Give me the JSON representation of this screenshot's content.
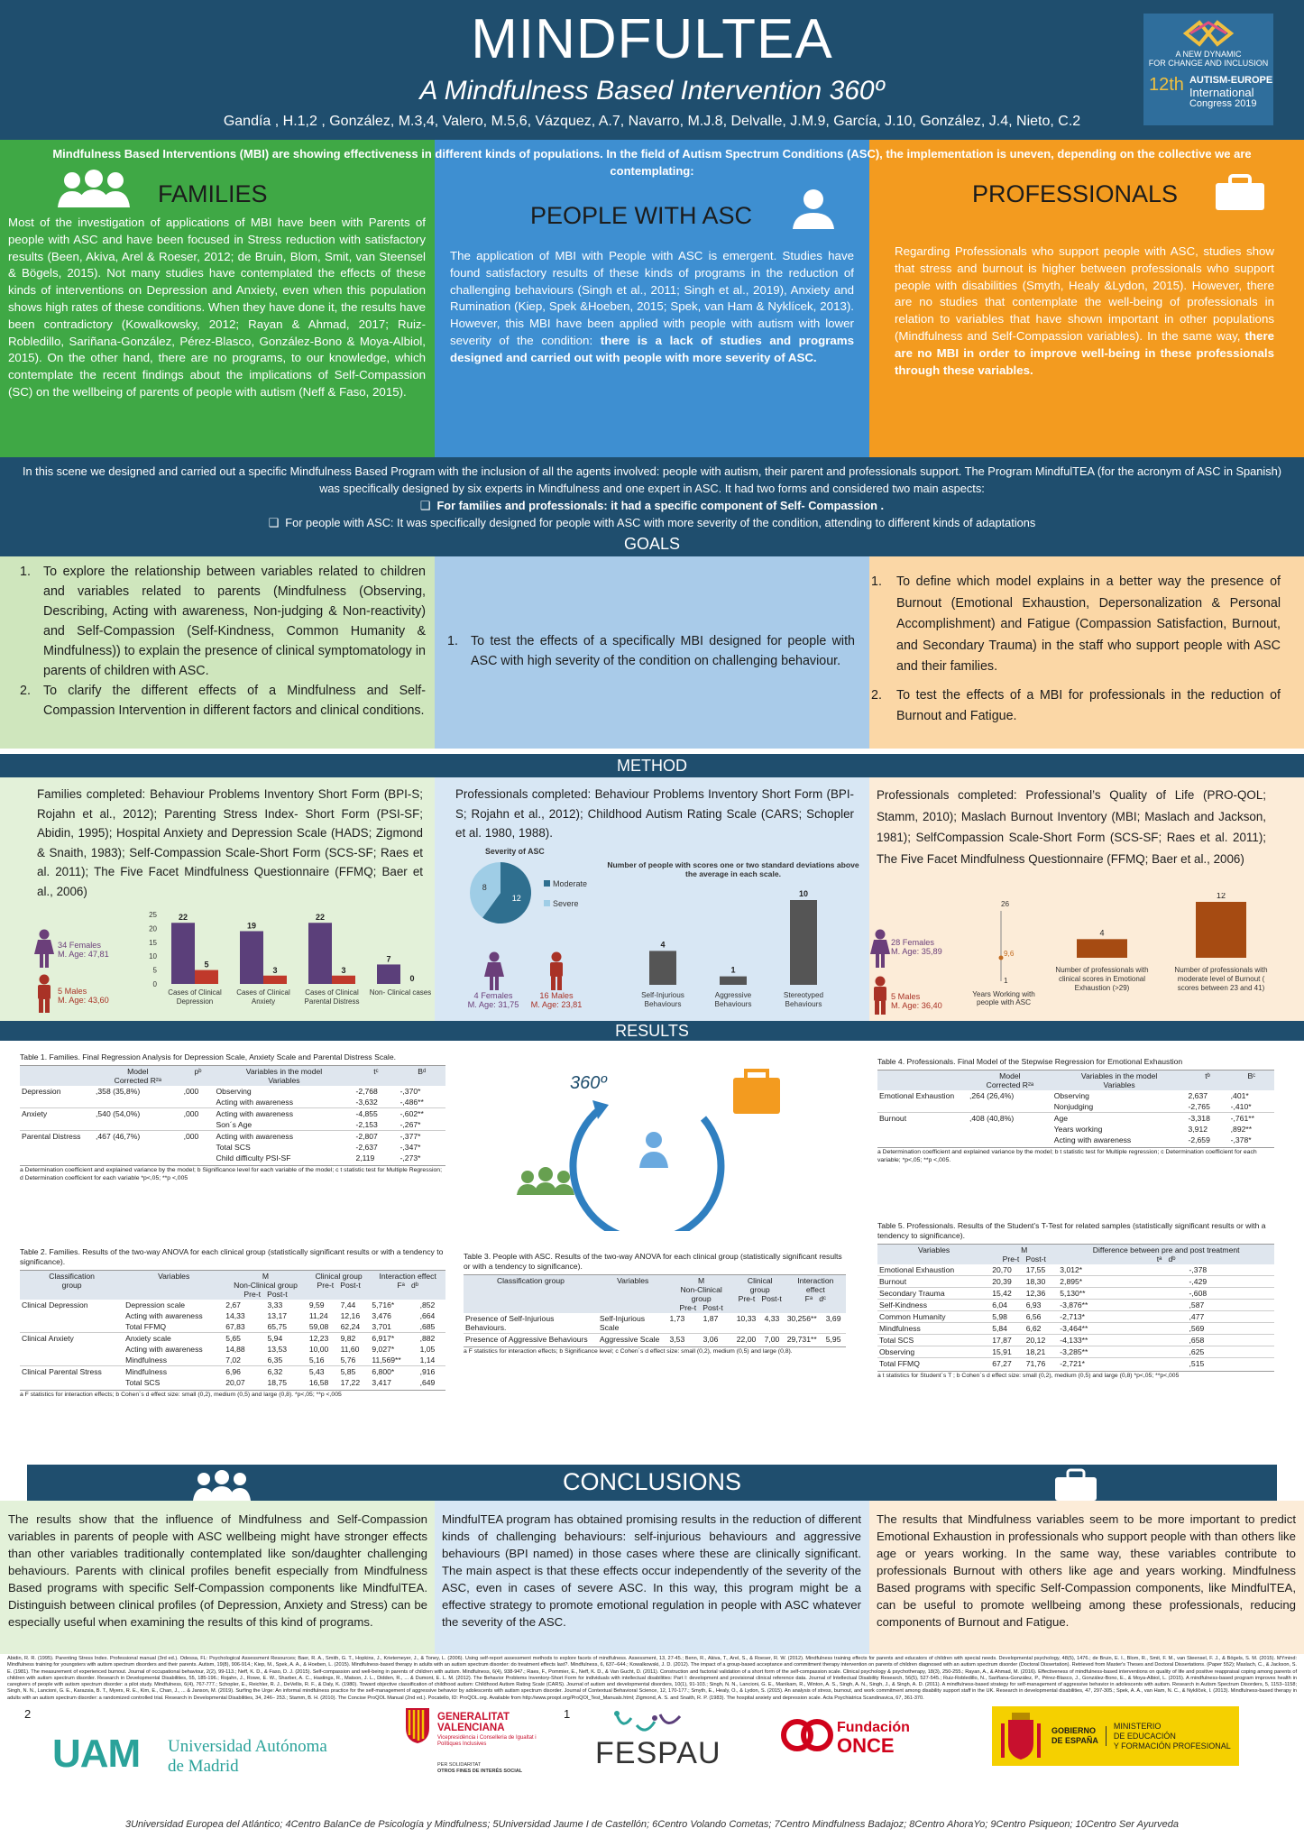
{
  "header": {
    "title": "MINDFULTEA",
    "subtitle": "A Mindfulness Based Intervention 360º",
    "authors": "Gandía , H.1,2 , González, M.3,4, Valero, M.5,6, Vázquez, A.7, Navarro, M.J.8, Delvalle, J.M.9, García, J.10, González, J.4, Nieto, C.2"
  },
  "congress": {
    "line1": "A NEW DYNAMIC",
    "line2": "FOR CHANGE AND INCLUSION",
    "num": "12th",
    "name1": "AUTISM-EUROPE",
    "name2": "International",
    "name3": "Congress 2019"
  },
  "intro": "Mindfulness Based Interventions (MBI) are showing effectiveness in different kinds of populations. In the field of Autism Spectrum Conditions (ASC), the implementation is uneven, depending on the collective we are contemplating:",
  "families": {
    "title": "FAMILIES",
    "text": "Most of the investigation of applications of MBI have been with Parents of people with ASC and have been focused in Stress reduction with satisfactory results (Been, Akiva, Arel & Roeser, 2012; de Bruin, Blom, Smit, van Steensel & Bögels, 2015). Not many studies have contemplated the effects of these kinds of interventions on Depression and Anxiety, even when this population shows high rates of these conditions. When they have done it, the results have been contradictory (Kowalkowsky, 2012; Rayan & Ahmad, 2017; Ruiz-Robledillo, Sariñana-González, Pérez-Blasco, González-Bono & Moya-Albiol, 2015). On the other hand, there are no programs, to our knowledge, which contemplate the recent findings about the implications of Self-Compassion (SC) on the wellbeing of parents of people with autism (Neff & Faso, 2015)."
  },
  "asc": {
    "title": "PEOPLE WITH ASC",
    "text": "The application of MBI with People with ASC is emergent. Studies have found satisfactory results of these kinds of programs in the reduction of challenging behaviours (Singh et al., 2011; Singh et al., 2019), Anxiety and Rumination (Kiep, Spek &Hoeben, 2015; Spek, van Ham & Nyklícek, 2013). However, this MBI have been applied with people with autism with lower severity of the condition:",
    "bold": "there is a lack of studies and programs designed and carried out with people with more severity of ASC."
  },
  "professionals": {
    "title": "PROFESSIONALS",
    "text": "Regarding Professionals who support people with ASC, studies show that stress and burnout is higher between professionals who support people with disabilities (Smyth, Healy &Lydon, 2015). However, there are no studies that contemplate the well-being of professionals in relation to variables that have shown important in other populations (Mindfulness and Self-Compassion variables). In the same way,",
    "bold": "there are no MBI in order to improve well-being in these professionals through these variables."
  },
  "scene": {
    "l1": "In this scene we designed and carried out a specific Mindfulness Based Program with the inclusion of all the agents involved: people with autism, their parent and professionals support. The Program MindfulTEA (for the acronym of ASC in Spanish) was specifically designed by six experts in Mindfulness and one expert in ASC. It had two forms and considered two main aspects:",
    "b1": "For families and professionals: it had a specific component of Self- Compassion .",
    "b2": "For people with ASC: It was specifically designed for people with ASC with more severity of the condition, attending to different kinds of adaptations"
  },
  "goals": {
    "title": "GOALS",
    "fam1": "To explore the relationship between variables related to children and variables related to parents (Mindfulness (Observing, Describing, Acting with awareness, Non-judging & Non-reactivity) and Self-Compassion (Self-Kindness, Common Humanity & Mindfulness)) to explain the presence of clinical symptomatology in parents of children with ASC.",
    "fam2": "To clarify the different effects of a Mindfulness and Self-Compassion Intervention in different factors and clinical conditions.",
    "asc1": "To test the effects of a specifically MBI designed for people with ASC with high severity of the condition on challenging behaviour.",
    "pro1": "To define which model explains in a better way the presence of Burnout (Emotional Exhaustion, Depersonalization & Personal Accomplishment) and Fatigue (Compassion Satisfaction, Burnout, and Secondary Trauma) in the staff who support people with ASC and their families.",
    "pro2": "To test the effects of a MBI for professionals in the reduction of Burnout and Fatigue."
  },
  "method": {
    "title": "METHOD",
    "fam": "Families completed: Behaviour Problems Inventory Short Form (BPI-S; Rojahn et al., 2012); Parenting Stress Index- Short Form (PSI-SF; Abidin, 1995); Hospital Anxiety and Depression Scale (HADS; Zigmond & Snaith, 1983); Self-Compassion Scale-Short Form (SCS-SF; Raes et al. 2011); The Five Facet Mindfulness Questionnaire (FFMQ; Baer et al., 2006)",
    "asc": "Professionals completed: Behaviour Problems Inventory Short Form (BPI-S; Rojahn et al., 2012); Childhood Autism Rating Scale (CARS; Schopler et al. 1980, 1988).",
    "pro": "Professionals completed: Professional’s Quality of Life (PRO-QOL; Stamm, 2010); Maslach Burnout Inventory (MBI; Maslach and Jackson, 1981); SelfCompassion Scale-Short Form (SCS-SF; Raes et al. 2011); The Five Facet Mindfulness Questionnaire (FFMQ; Baer et al., 2006)",
    "famFemales": "34 Females",
    "famFemAge": "M. Age: 47,81",
    "famMales": "5 Males",
    "famMaleAge": "M. Age: 43,60",
    "ascFemales": "4 Females",
    "ascFemAge": "M. Age: 31,75",
    "ascMales": "16 Males",
    "ascMaleAge": "M. Age: 23,81",
    "proFemales": "28 Females",
    "proFemAge": "M. Age: 35,89",
    "proMales": "5 Males",
    "proMaleAge": "M. Age: 36,40",
    "pieTitle": "Severity of ASC",
    "pieModerate": "Moderate",
    "pieSevere": "Severe",
    "ascBarTitle": "Number of people with scores one or two standard deviations above the average in each scale.",
    "proYears": "Years Working with people with ASC",
    "proYrTop": "26",
    "proYrMid": "9,6",
    "proYrBot": "1"
  },
  "chart_data": [
    {
      "type": "bar",
      "title": "",
      "categories": [
        "Cases of Clinical Depression",
        "Cases of Clinical Anxiety",
        "Cases of Clinical Parental Distress",
        "Non- Clinical cases"
      ],
      "series": [
        {
          "values": [
            22,
            19,
            22,
            7
          ]
        },
        {
          "values": [
            5,
            3,
            3,
            0
          ]
        }
      ],
      "ylim": [
        0,
        25
      ],
      "yticks": [
        "25",
        "20",
        "15",
        "10",
        "5",
        "0"
      ]
    },
    {
      "type": "pie",
      "title": "Severity of ASC",
      "categories": [
        "Moderate",
        "Severe"
      ],
      "values": [
        12,
        8
      ]
    },
    {
      "type": "bar",
      "title": "Number of people with scores one or two standard deviations above the average in each scale.",
      "categories": [
        "Self-Injurious Behaviours",
        "Aggressive Behaviours",
        "Stereotyped Behaviours"
      ],
      "values": [
        4,
        1,
        10
      ]
    },
    {
      "type": "bar",
      "title": "",
      "categories": [
        "Number of professionals with clinical scores in Emotional Exhaustion (>29)",
        "Number of professionals with moderate level of Burnout ( scores between 23 and 41)"
      ],
      "values": [
        4,
        12
      ]
    }
  ],
  "results": {
    "title": "RESULTS",
    "label360": "360º",
    "t1title": "Table 1. Families. Final Regression Analysis for Depression Scale, Anxiety Scale and Parental Distress Scale.",
    "t1note": "a Determination coefficient and explained variance by the model; b Significance level for each variable of the model; c t statistic test for Multiple Regression; d Determination coefficient for each variable *p<,05; **p <,005",
    "t1rows": [
      [
        "Depression",
        ",358 (35,8%)",
        ",000",
        "Observing",
        "-2,768",
        "-,370*"
      ],
      [
        "",
        "",
        "",
        "Acting with awareness",
        "-3,632",
        "-,486**"
      ],
      [
        "Anxiety",
        ",540 (54,0%)",
        ",000",
        "Acting with awareness",
        "-4,855",
        "-,602**"
      ],
      [
        "",
        "",
        "",
        "Son´s Age",
        "-2,153",
        "-,267*"
      ],
      [
        "Parental Distress",
        ",467 (46,7%)",
        ",000",
        "Acting with awareness",
        "-2,807",
        "-,377*"
      ],
      [
        "",
        "",
        "",
        "Total SCS",
        "-2,637",
        "-,347*"
      ],
      [
        "",
        "",
        "",
        "Child difficulty PSI-SF",
        "2,119",
        "-,273*"
      ]
    ],
    "t2title": "Table 2. Families. Results of the two-way ANOVA for each clinical group (statistically significant results or with a tendency to significance).",
    "t2note": "a F statistics for interaction effects; b Cohen´s d effect size: small (0,2), medium (0,5) and large (0,8). *p<,05; **p <,005",
    "t2rows": [
      [
        "Clinical Depression",
        "Depression scale",
        "2,67",
        "3,33",
        "9,59",
        "7,44",
        "5,716*",
        ",852"
      ],
      [
        "",
        "Acting with awareness",
        "14,33",
        "13,17",
        "11,24",
        "12,16",
        "3,476",
        ",664"
      ],
      [
        "",
        "Total FFMQ",
        "67,83",
        "65,75",
        "59,08",
        "62,24",
        "3,701",
        ",685"
      ],
      [
        "Clinical Anxiety",
        "Anxiety scale",
        "5,65",
        "5,94",
        "12,23",
        "9,82",
        "6,917*",
        ",882"
      ],
      [
        "",
        "Acting with awareness",
        "14,88",
        "13,53",
        "10,00",
        "11,60",
        "9,027*",
        "1,05"
      ],
      [
        "",
        "Mindfulness",
        "7,02",
        "6,35",
        "5,16",
        "5,76",
        "11,569**",
        "1,14"
      ],
      [
        "Clinical Parental Stress",
        "Mindfulness",
        "6,96",
        "6,32",
        "5,43",
        "5,85",
        "6,800*",
        ",916"
      ],
      [
        "",
        "Total SCS",
        "20,07",
        "18,75",
        "16,58",
        "17,22",
        "3,417",
        ",649"
      ]
    ],
    "t3title": "Table 3. People with ASC. Results of the two-way ANOVA for each clinical group (statistically significant results or with a tendency to significance).",
    "t3note": "a F statistics for interaction effects; b Significance level; c Cohen´s d effect size: small (0,2), medium (0,5) and large (0,8).",
    "t3rows": [
      [
        "Presence of Self-Injurious Behaviours.",
        "Self-Injurious Scale",
        "1,73",
        "1,87",
        "10,33",
        "4,33",
        "30,256**",
        "3,69"
      ],
      [
        "Presence of Aggressive Behaviours",
        "Aggressive Scale",
        "3,53",
        "3,06",
        "22,00",
        "7,00",
        "29,731**",
        "5,95"
      ]
    ],
    "t4title": "Table 4. Professionals. Final Model of the Stepwise Regression for Emotional Exhaustion",
    "t4note": "a Determination coefficient and explained variance by the model; b t statistic test for Multiple regression; c Determination coefficient for each variable; *p<,05; **p <,005.",
    "t4rows": [
      [
        "Emotional Exhaustion",
        ",264 (26,4%)",
        "Observing",
        "2,637",
        ",401*"
      ],
      [
        "",
        "",
        "Nonjudging",
        "-2,765",
        "-,410*"
      ],
      [
        "Burnout",
        ",408 (40,8%)",
        "Age",
        "-3,318",
        "-,761**"
      ],
      [
        "",
        "",
        "Years working",
        "3,912",
        ",892**"
      ],
      [
        "",
        "",
        "Acting with awareness",
        "-2,659",
        "-,378*"
      ]
    ],
    "t5title": "Table 5. Professionals. Results of the Student’s T-Test for related samples (statistically significant results or with a tendency to significance).",
    "t5note": "a t statistics for Student´s T ; b Cohen´s d effect size: small (0,2), medium (0,5) and large (0,8) *p<,05; **p<,005",
    "t5rows": [
      [
        "Emotional Exhaustion",
        "20,70",
        "17,55",
        "3,012*",
        "-,378"
      ],
      [
        "Burnout",
        "20,39",
        "18,30",
        "2,895*",
        "-,429"
      ],
      [
        "Secondary Trauma",
        "15,42",
        "12,36",
        "5,130**",
        "-,608"
      ],
      [
        "Self-Kindness",
        "6,04",
        "6,93",
        "-3,876**",
        ",587"
      ],
      [
        "Common Humanity",
        "5,98",
        "6,56",
        "-2,713*",
        ",477"
      ],
      [
        "Mindfulness",
        "5,84",
        "6,62",
        "-3,464**",
        ",569"
      ],
      [
        "Total SCS",
        "17,87",
        "20,12",
        "-4,133**",
        ",658"
      ],
      [
        "Observing",
        "15,91",
        "18,21",
        "-3,285**",
        ",625"
      ],
      [
        "Total FFMQ",
        "67,27",
        "71,76",
        "-2,721*",
        ",515"
      ]
    ]
  },
  "conclusions": {
    "title": "CONCLUSIONS",
    "fam": "The results show that the influence of Mindfulness and Self-Compassion variables in parents of people with ASC wellbeing might have stronger effects than other variables traditionally contemplated like son/daughter challenging behaviours. Parents with clinical profiles benefit especially from Mindfulness Based programs with specific Self-Compassion components like MindfulTEA. Distinguish between clinical profiles (of Depression, Anxiety and Stress) can be especially useful when examining the results of this kind of programs.",
    "asc": "MindfulTEA program has obtained promising results in the reduction of different kinds of challenging behaviours: self-injurious behaviours and aggressive behaviours (BPI named) in those cases where these are clinically significant. The main aspect is that these effects occur independently of the severity of the ASC, even in cases of severe ASC. In this way, this program might be a effective strategy to promote emotional regulation in people with ASC whatever the severity of the ASC.",
    "pro": "The results that Mindfulness variables seem to be more important to predict Emotional Exhaustion in professionals who support people with than others like age or years working. In the same way, these variables contribute to professionals Burnout with others like age and years working. Mindfulness Based programs with specific Self-Compassion components, like MindfulTEA, can be useful to promote wellbeing among these professionals, reducing components of Burnout and Fatigue."
  },
  "references": "Abidin, R. R. (1995). Parenting Stress Index. Professional manual (3rd ed.). Odessa, FL: Psychological Assessment Resources; Baer, R. A., Smith, G. T., Hopkins, J., Krietemeyer, J., & Toney, L. (2006). Using self-report assessment methods to explore facets of mindfulness. Assessment, 13, 27-45.; Benn, R., Akiva, T., Arel, S., & Roeser, R. W. (2012). Mindfulness training effects for parents and educators of children with special needs. Developmental psychology, 48(5), 1476.; de Bruin, E. I., Blom, R., Smit, F. M., van Steensel, F. J., & Bögels, S. M. (2015). MYmind: Mindfulness training for youngsters with autism spectrum disorders and their parents. Autism, 19(8), 906-914.; Kiep, M., Spek, A. A., & Hoeben, L. (2015). Mindfulness-based therapy in adults with an autism spectrum disorder: do treatment effects last?. Mindfulness, 6, 637–644.; Kowalkowski, J. D. (2012). The impact of a group-based acceptance and commitment therapy intervention on parents of children diagnosed with an autism spectrum disorder (Doctoral Dissertation). Retrieved from Master's Theses and Doctoral Dissertations. (Paper 552); Maslach, C., & Jackson, S. E. (1981). The measurement of experienced burnout. Journal of occupational behaviour, 2(2), 99-113.; Neff, K. D., & Faso, D. J. (2015). Self-compassion and well-being in parents of children with autism. Mindfulness, 6(4), 938-947.; Raes, F., Pommier, E., Neff, K. D., & Van Gucht, D. (2011). Construction and factorial validation of a short form of the self-compassion scale. Clinical psychology & psychotherapy, 18(3), 250-255.; Rayan, A., & Ahmad, M. (2016). Effectiveness of mindfulness-based interventions on quality of life and positive reappraisal coping among parents of children with autism spectrum disorder. Research in Developmental Disabilities, 55, 185-196.; Rojahn, J., Rowe, E. W., Sharber, A. C., Hastings, R., Matson, J. L., Didden, R., ... & Dumont, E. L. M. (2012). The Behavior Problems Inventory-Short Form for individuals with intellectual disabilities: Part I: development and provisional clinical reference data. Journal of Intellectual Disability Research, 56(5), 527-545.; Ruiz-Robledillo, N., Sariñana-González, P., Pérez-Blasco, J., González-Bono, E., & Moya-Albiol, L. (2015). A mindfulness-based program improves health in caregivers of people with autism spectrum disorder: a pilot study. Mindfulness, 6(4), 767-777.; Schopler, E., Reichler, R. J., DeVellis, R. F., & Daly, K. (1980). Toward objective classification of childhood autism: Childhood Autism Rating Scale (CARS). Journal of autism and developmental disorders, 10(1), 91-103.; Singh, N. N., Lancioni, G. E., Manikam, R., Winton, A. S., Singh, A. N., Singh, J., & Singh, A. D. (2011). A mindfulness-based strategy for self-management of aggressive behavior in adolescents with autism. Research in Autism Spectrum Disorders, 5, 1153–1158; Singh, N. N., Lancioni, G. E., Karazsia, B. T., Myers, R. E., Kim, E., Chan, J., ... & Janson, M. (2019). Surfing the Urge: An informal mindfulness practice for the self-management of aggressive behavior by adolescents with autism spectrum disorder. Journal of Contextual Behavioral Science, 12, 170-177.; Smyth, E., Healy, O., & Lydon, S. (2015). An analysis of stress, burnout, and work commitment among disability support staff in the UK. Research in developmental disabilities, 47, 297-305.; Spek, A. A., van Ham, N. C., & Nyklíček, I. (2013). Mindfulness-based therapy in adults with an autism spectrum disorder: a randomized controlled trial. Research in Developmental Disabilities, 34, 246– 253.; Stamm, B. H. (2010). The Concise ProQOL Manual (2nd ed.). Pocatello, ID: ProQOL.org. Available from http://www.proqol.org/ProQOl_Test_Manuals.html; Zigmond, A. S. and Snaith, R. P. (1983). The hospital anxiety and depression scale. Acta Psychiatrica Scandinavica, 67, 361-370.",
  "footer": {
    "n2": "2",
    "n1": "1",
    "uam": "UAM",
    "uamName1": "Universidad Autónoma",
    "uamName2": "de Madrid",
    "gva1": "GENERALITAT",
    "gva2": "VALENCIANA",
    "gva3": "Vicepresidència i Conselleria de Igualtat i Polítiques Inclusives",
    "gva4": "PER SOLIDARITAT",
    "gva5": "OTROS FINES DE INTERÉS SOCIAL",
    "fespau": "FESPAU",
    "once1": "Fundación",
    "once2": "ONCE",
    "gob1": "GOBIERNO",
    "gob2": "DE ESPAÑA",
    "min1": "MINISTERIO",
    "min2": "DE EDUCACIÓN",
    "min3": "Y FORMACIÓN PROFESIONAL",
    "aff": "3Universidad Europea del Atlántico; 4Centro BalanCe de Psicología y Mindfulness; 5Universidad Jaume I de Castellón; 6Centro Volando Cometas; 7Centro Mindfulness Badajoz; 8Centro AhoraYo; 9Centro Psiqueon; 10Centro Ser Ayurveda"
  },
  "colors": {
    "teal": "#1f4e6e",
    "green": "#3fa845",
    "blue": "#3e8fd1",
    "orange": "#f39b1f",
    "purple": "#5b3f7a",
    "red": "#c0392b",
    "brown": "#a64b12",
    "grey": "#555555"
  }
}
